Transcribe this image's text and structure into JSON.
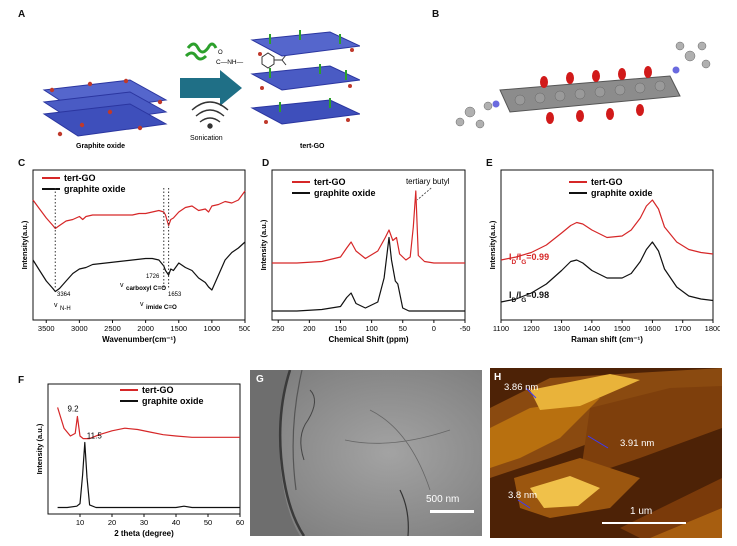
{
  "panels": {
    "a": {
      "letter": "A",
      "label_left": "Graphite oxide",
      "label_right": "tert-GO",
      "process": "Sonication",
      "molecule": "C—NH—",
      "molecule_o": "O"
    },
    "b": {
      "letter": "B"
    },
    "c": {
      "letter": "C",
      "legend": [
        "tert-GO",
        "graphite oxide"
      ],
      "ann_nh_num": "3364",
      "ann_nh_v": "v",
      "ann_nh_txt": "N-H",
      "ann_carboxyl_num": "1726",
      "ann_carboxyl_v": "v",
      "ann_carboxyl_txt": "carboxyl C=O",
      "ann_imide_num": "1653",
      "ann_imide_v": "v",
      "ann_imide_txt": "imide C=O"
    },
    "d": {
      "letter": "D",
      "annotation": "tertiary butyl"
    },
    "e": {
      "letter": "E",
      "ratio1_i": "I",
      "ratio1_d": "D",
      "ratio1_slash": "/I",
      "ratio1_g": "G",
      "ratio1_val": "=0.99",
      "ratio2_i": "I",
      "ratio2_d": "D",
      "ratio2_slash": "/I",
      "ratio2_g": "G",
      "ratio2_val": "=0.98"
    },
    "f": {
      "letter": "F",
      "peak1": "9.2",
      "peak2": "11.5"
    },
    "g": {
      "letter": "G",
      "scalebar": "500 nm"
    },
    "h": {
      "letter": "H",
      "h1": "3.86 nm",
      "h2": "3.91 nm",
      "h3": "3.8 nm",
      "scalebar": "1 um"
    }
  },
  "colors": {
    "red": "#d62728",
    "black": "#111111",
    "blue": "#3345c9"
  },
  "chart_data": [
    {
      "id": "C",
      "type": "line",
      "title": "",
      "xlabel": "Wavenumber(cm⁻¹)",
      "ylabel": "Intensity(a.u.)",
      "xlim": [
        3700,
        500
      ],
      "ylim": [
        0,
        1
      ],
      "xticks": [
        "3500",
        "3000",
        "2500",
        "2000",
        "1500",
        "1000",
        "500"
      ],
      "legend": "top-left",
      "series": [
        {
          "name": "tert-GO",
          "color": "#d62728",
          "x": [
            3700,
            3600,
            3500,
            3400,
            3364,
            3300,
            3200,
            3100,
            3000,
            2950,
            2900,
            2800,
            2600,
            2400,
            2200,
            2100,
            2000,
            1900,
            1800,
            1726,
            1700,
            1653,
            1620,
            1580,
            1500,
            1400,
            1300,
            1200,
            1100,
            1050,
            1000,
            900,
            800,
            700,
            600,
            500
          ],
          "y": [
            0.8,
            0.74,
            0.68,
            0.63,
            0.61,
            0.63,
            0.66,
            0.67,
            0.69,
            0.67,
            0.69,
            0.7,
            0.7,
            0.7,
            0.7,
            0.71,
            0.71,
            0.72,
            0.73,
            0.72,
            0.7,
            0.63,
            0.67,
            0.68,
            0.72,
            0.75,
            0.76,
            0.73,
            0.74,
            0.72,
            0.76,
            0.77,
            0.79,
            0.78,
            0.8,
            0.86
          ]
        },
        {
          "name": "graphite oxide",
          "color": "#111111",
          "x": [
            3700,
            3600,
            3500,
            3400,
            3364,
            3300,
            3200,
            3100,
            3000,
            2900,
            2800,
            2600,
            2400,
            2200,
            2000,
            1900,
            1800,
            1726,
            1700,
            1653,
            1620,
            1580,
            1500,
            1400,
            1300,
            1200,
            1100,
            1050,
            1000,
            900,
            800,
            700,
            600,
            500
          ],
          "y": [
            0.4,
            0.33,
            0.26,
            0.21,
            0.19,
            0.21,
            0.26,
            0.31,
            0.34,
            0.35,
            0.37,
            0.38,
            0.39,
            0.4,
            0.41,
            0.41,
            0.4,
            0.36,
            0.33,
            0.3,
            0.34,
            0.33,
            0.38,
            0.35,
            0.33,
            0.28,
            0.25,
            0.22,
            0.2,
            0.3,
            0.4,
            0.45,
            0.48,
            0.52
          ]
        }
      ]
    },
    {
      "id": "D",
      "type": "line",
      "title": "",
      "xlabel": "Chemical Shift (ppm)",
      "ylabel": "Intensity (a.u.)",
      "xlim": [
        260,
        -50
      ],
      "ylim": [
        0,
        1
      ],
      "xticks": [
        "250",
        "200",
        "150",
        "100",
        "50",
        "0",
        "-50"
      ],
      "legend": "top-left",
      "series": [
        {
          "name": "tert-GO",
          "color": "#d62728",
          "x": [
            260,
            220,
            180,
            150,
            140,
            133,
            125,
            110,
            90,
            78,
            72,
            66,
            60,
            55,
            45,
            38,
            33,
            29,
            25,
            15,
            0,
            -20,
            -50
          ],
          "y": [
            0.38,
            0.38,
            0.39,
            0.42,
            0.48,
            0.52,
            0.46,
            0.41,
            0.46,
            0.55,
            0.6,
            0.53,
            0.55,
            0.44,
            0.4,
            0.42,
            0.62,
            0.86,
            0.43,
            0.39,
            0.38,
            0.38,
            0.38
          ]
        },
        {
          "name": "graphite oxide",
          "color": "#111111",
          "x": [
            260,
            220,
            180,
            150,
            140,
            133,
            125,
            110,
            90,
            80,
            75,
            72,
            68,
            62,
            58,
            50,
            40,
            20,
            0,
            -20,
            -50
          ],
          "y": [
            0.06,
            0.06,
            0.07,
            0.09,
            0.15,
            0.18,
            0.11,
            0.08,
            0.12,
            0.28,
            0.45,
            0.55,
            0.4,
            0.26,
            0.24,
            0.08,
            0.06,
            0.06,
            0.06,
            0.06,
            0.06
          ]
        }
      ]
    },
    {
      "id": "E",
      "type": "line",
      "title": "",
      "xlabel": "Raman shift (cm⁻¹)",
      "ylabel": "Intensity(a.u.)",
      "xlim": [
        1100,
        1800
      ],
      "ylim": [
        0,
        1
      ],
      "xticks": [
        "1100",
        "1200",
        "1300",
        "1400",
        "1500",
        "1600",
        "1700",
        "1800"
      ],
      "legend": "top-right",
      "series": [
        {
          "name": "tert-GO",
          "color": "#d62728",
          "x": [
            1100,
            1150,
            1200,
            1250,
            1300,
            1330,
            1350,
            1370,
            1400,
            1450,
            1500,
            1530,
            1560,
            1580,
            1600,
            1620,
            1640,
            1680,
            1720,
            1760,
            1800
          ],
          "y": [
            0.4,
            0.42,
            0.45,
            0.5,
            0.58,
            0.63,
            0.65,
            0.64,
            0.6,
            0.55,
            0.56,
            0.6,
            0.68,
            0.76,
            0.8,
            0.74,
            0.62,
            0.52,
            0.47,
            0.45,
            0.44
          ]
        },
        {
          "name": "graphite oxide",
          "color": "#111111",
          "x": [
            1100,
            1150,
            1200,
            1250,
            1300,
            1330,
            1350,
            1370,
            1400,
            1450,
            1500,
            1530,
            1560,
            1580,
            1600,
            1620,
            1640,
            1680,
            1720,
            1760,
            1800
          ],
          "y": [
            0.12,
            0.14,
            0.18,
            0.24,
            0.33,
            0.39,
            0.4,
            0.38,
            0.33,
            0.28,
            0.28,
            0.31,
            0.39,
            0.47,
            0.52,
            0.46,
            0.34,
            0.22,
            0.16,
            0.14,
            0.13
          ]
        }
      ]
    },
    {
      "id": "F",
      "type": "line",
      "title": "",
      "xlabel": "2 theta (degree)",
      "ylabel": "Intensity (a.u.)",
      "xlim": [
        0,
        60
      ],
      "ylim": [
        0,
        1
      ],
      "xticks": [
        "10",
        "20",
        "30",
        "40",
        "50",
        "60"
      ],
      "legend": "top-right",
      "series": [
        {
          "name": "tert-GO",
          "color": "#d62728",
          "x": [
            3,
            5,
            7,
            8.5,
            9.2,
            10,
            11,
            13,
            16,
            20,
            24,
            28,
            32,
            36,
            40,
            45,
            50,
            55,
            60
          ],
          "y": [
            0.82,
            0.66,
            0.6,
            0.62,
            0.75,
            0.6,
            0.58,
            0.58,
            0.61,
            0.64,
            0.66,
            0.65,
            0.63,
            0.61,
            0.6,
            0.59,
            0.59,
            0.59,
            0.59
          ]
        },
        {
          "name": "graphite oxide",
          "color": "#111111",
          "x": [
            3,
            6,
            9,
            10,
            10.8,
            11.5,
            12.2,
            13,
            15,
            20,
            25,
            30,
            35,
            40,
            42.5,
            45,
            50,
            55,
            60
          ],
          "y": [
            0.05,
            0.05,
            0.06,
            0.08,
            0.3,
            0.55,
            0.28,
            0.07,
            0.05,
            0.05,
            0.05,
            0.05,
            0.05,
            0.05,
            0.06,
            0.05,
            0.05,
            0.05,
            0.05
          ]
        }
      ]
    }
  ]
}
